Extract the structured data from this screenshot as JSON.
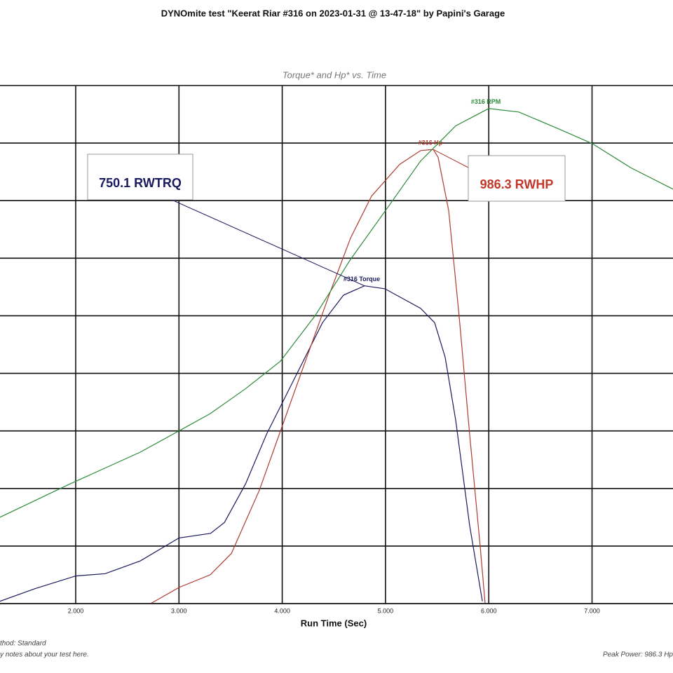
{
  "chart_data": {
    "type": "line",
    "title": "DYNOmite test \"Keerat Riar #316 on 2023-01-31 @ 13-47-18\" by Papini's Garage",
    "subtitle": "Torque* and Hp* vs. Time",
    "x_label": "Run Time (Sec)",
    "footer_left": [
      "thod: Standard",
      "y notes about your test here."
    ],
    "footer_right": "Peak Power: 986.3 Hp",
    "annotations": [
      {
        "text": "750.1 RWTRQ",
        "color": "#1a1a5e"
      },
      {
        "text": "986.3 RWHP",
        "color": "#c0392b"
      }
    ],
    "xlim": [
      1.267,
      7.784
    ],
    "xticks": [
      {
        "value": 2,
        "label": "2.000"
      },
      {
        "value": 3,
        "label": "3.000"
      },
      {
        "value": 4,
        "label": "4.000"
      },
      {
        "value": 5,
        "label": "5.000"
      },
      {
        "value": 6,
        "label": "6.000"
      },
      {
        "value": 7,
        "label": "7.000"
      }
    ],
    "ylim": [
      0,
      9
    ],
    "yticks": [
      0,
      1,
      2,
      3,
      4,
      5,
      6,
      7,
      8,
      9
    ],
    "ytick_labels": false,
    "grid": true,
    "series": [
      {
        "name": "#316 Torque",
        "color": "#1a1a5e",
        "x": [
          1.267,
          1.606,
          2.0,
          2.285,
          2.625,
          3.0,
          3.306,
          3.441,
          3.645,
          3.847,
          4.119,
          4.39,
          4.594,
          4.797,
          4.994,
          5.34,
          5.476,
          5.578,
          5.68,
          5.815,
          5.938
        ],
        "values": [
          0.04,
          0.26,
          0.48,
          0.52,
          0.74,
          1.14,
          1.22,
          1.41,
          2.08,
          2.94,
          3.91,
          4.88,
          5.36,
          5.52,
          5.47,
          5.13,
          4.88,
          4.28,
          3.18,
          1.35,
          0.04
        ]
      },
      {
        "name": "#316 Hp",
        "color": "#b03a2e",
        "x": [
          2.726,
          3.0,
          3.303,
          3.507,
          3.779,
          4.118,
          4.458,
          4.661,
          4.865,
          5.137,
          5.34,
          5.462,
          5.51,
          5.612,
          5.713,
          5.815,
          5.917,
          5.965
        ],
        "values": [
          0,
          0.28,
          0.5,
          0.87,
          1.97,
          3.68,
          5.38,
          6.35,
          7.08,
          7.63,
          7.87,
          7.89,
          7.75,
          6.83,
          5.0,
          2.93,
          0.99,
          0
        ]
      },
      {
        "name": "#316 RPM",
        "color": "#2e8b3a",
        "x": [
          1.267,
          1.946,
          2.625,
          3.0,
          3.303,
          3.643,
          3.982,
          4.322,
          4.661,
          5.001,
          5.34,
          5.68,
          5.999,
          6.291,
          6.698,
          7.003,
          7.377,
          7.784
        ],
        "values": [
          1.5,
          2.08,
          2.63,
          3.0,
          3.3,
          3.73,
          4.21,
          5.01,
          5.98,
          6.83,
          7.69,
          8.3,
          8.6,
          8.54,
          8.23,
          7.99,
          7.57,
          7.2
        ]
      }
    ]
  }
}
